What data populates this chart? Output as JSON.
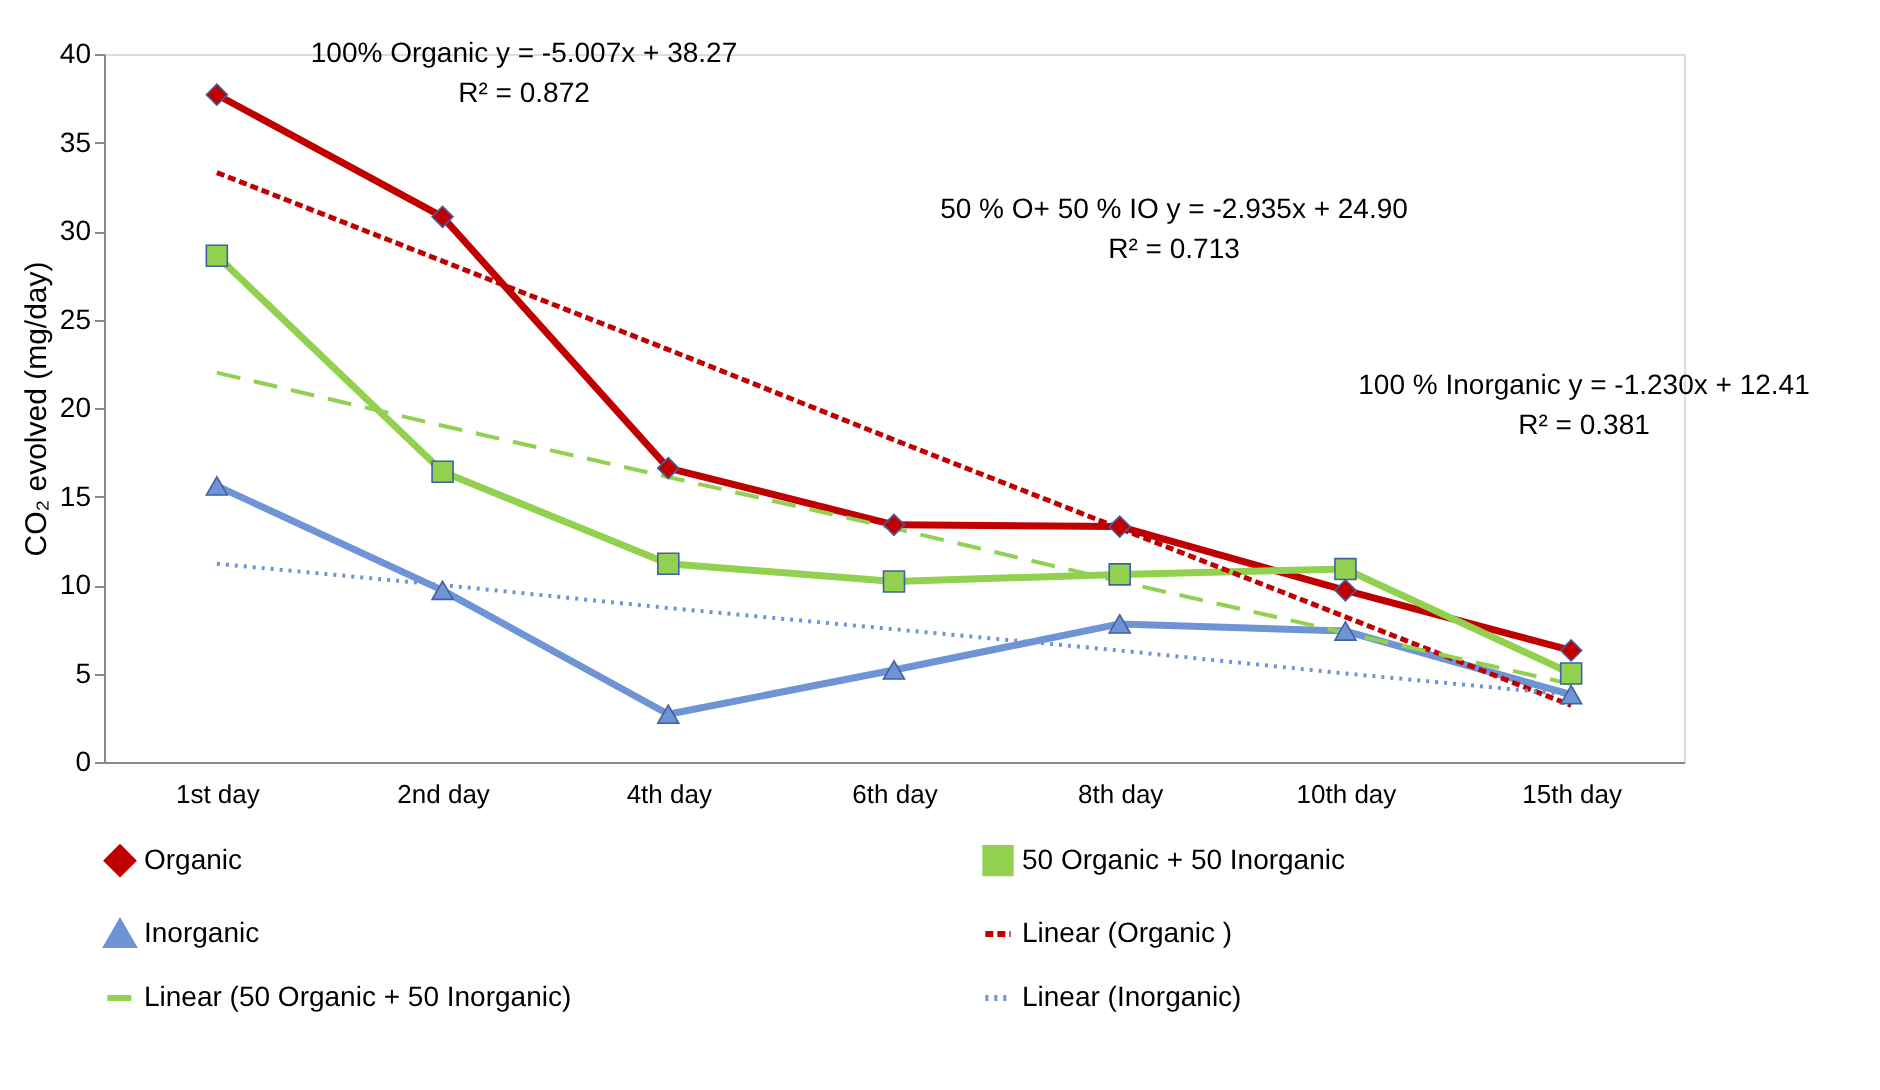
{
  "chart_data": {
    "type": "line",
    "ylabel": "CO₂ evolved (mg/day)",
    "categories": [
      "1st day",
      "2nd day",
      "4th  day",
      "6th day",
      "8th day",
      "10th day",
      "15th day"
    ],
    "ylim": [
      0,
      40
    ],
    "yticks": [
      0,
      5,
      10,
      15,
      20,
      25,
      30,
      35,
      40
    ],
    "grid": false,
    "legend": "bottom",
    "series": [
      {
        "name": "Organic",
        "color": "#c00000",
        "marker": "diamond",
        "line_style": "solid",
        "values": [
          37.7,
          30.8,
          16.6,
          13.4,
          13.3,
          9.7,
          6.3
        ]
      },
      {
        "name": "50 Organic + 50 Inorganic",
        "color": "#92d050",
        "marker": "square",
        "line_style": "solid",
        "values": [
          28.6,
          16.4,
          11.2,
          10.2,
          10.6,
          10.9,
          5.0
        ]
      },
      {
        "name": "Inorganic",
        "color": "#6f94d6",
        "marker": "triangle",
        "line_style": "solid",
        "values": [
          15.6,
          9.7,
          2.7,
          5.2,
          7.8,
          7.4,
          3.8
        ]
      },
      {
        "name": "Linear (Organic )",
        "color": "#c00000",
        "marker": "none",
        "line_style": "dashed",
        "values": [
          33.3,
          28.3,
          23.3,
          18.2,
          13.2,
          8.2,
          3.2
        ]
      },
      {
        "name": "Linear (50 Organic + 50 Inorganic)",
        "color": "#92d050",
        "marker": "none",
        "line_style": "longdash",
        "values": [
          22.0,
          19.0,
          16.1,
          13.2,
          10.2,
          7.3,
          4.4
        ]
      },
      {
        "name": "Linear (Inorganic)",
        "color": "#6f94d6",
        "marker": "none",
        "line_style": "dotted",
        "values": [
          11.2,
          10.0,
          8.7,
          7.5,
          6.3,
          5.0,
          3.8
        ]
      }
    ],
    "annotations": [
      "100% Organic y = -5.007x + 38.27",
      "R² = 0.872",
      "50 % O+ 50 % IO y = -2.935x + 24.90",
      "R² = 0.713",
      "100 % Inorganic y = -1.230x + 12.41",
      "R² = 0.381"
    ]
  }
}
